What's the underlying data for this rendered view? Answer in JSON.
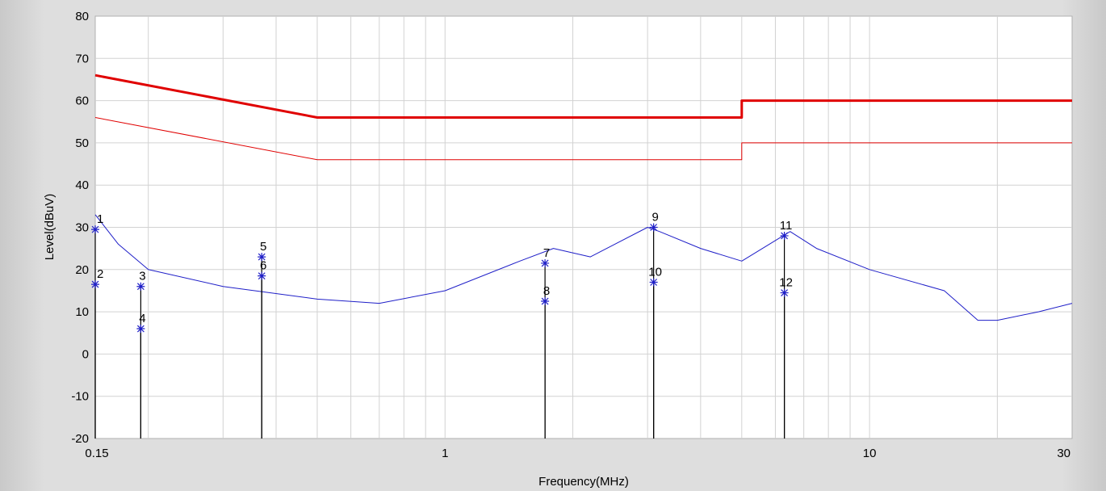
{
  "chart_data": {
    "type": "line",
    "title": "",
    "xlabel": "Frequency(MHz)",
    "ylabel": "Level(dBuV)",
    "x_scale": "log",
    "xlim": [
      0.15,
      30
    ],
    "ylim": [
      -20,
      80
    ],
    "grid": true,
    "x_tick_labels": [
      {
        "value": 0.15,
        "label": "0.15"
      },
      {
        "value": 1,
        "label": "1"
      },
      {
        "value": 10,
        "label": "10"
      },
      {
        "value": 30,
        "label": "30"
      }
    ],
    "y_ticks": [
      -20,
      -10,
      0,
      10,
      20,
      30,
      40,
      50,
      60,
      70,
      80
    ],
    "series": [
      {
        "color": "#e00000",
        "width": 3,
        "x": [
          0.15,
          0.5,
          0.5,
          5,
          5,
          30
        ],
        "y": [
          66,
          56,
          56,
          56,
          60,
          60
        ]
      },
      {
        "color": "#e00000",
        "width": 1,
        "x": [
          0.15,
          0.5,
          0.5,
          5,
          5,
          30
        ],
        "y": [
          56,
          46,
          46,
          46,
          50,
          50
        ]
      },
      {
        "color": "#1f1fc8",
        "width": 1,
        "x": [
          0.15,
          0.17,
          0.2,
          0.3,
          0.5,
          0.7,
          1.0,
          1.5,
          1.8,
          2.2,
          3.0,
          3.2,
          4.0,
          5.0,
          6.5,
          7.5,
          10,
          15,
          18,
          20,
          25,
          30
        ],
        "y": [
          33,
          26,
          20,
          16,
          13,
          12,
          15,
          22,
          25,
          23,
          30,
          29,
          25,
          22,
          29,
          25,
          20,
          15,
          8,
          8,
          10,
          12
        ]
      }
    ],
    "markers": [
      {
        "id": "1",
        "x": 0.15,
        "y": 29.5
      },
      {
        "id": "2",
        "x": 0.15,
        "y": 16.5
      },
      {
        "id": "3",
        "x": 0.192,
        "y": 16
      },
      {
        "id": "4",
        "x": 0.192,
        "y": 6
      },
      {
        "id": "5",
        "x": 0.37,
        "y": 23
      },
      {
        "id": "6",
        "x": 0.37,
        "y": 18.5
      },
      {
        "id": "7",
        "x": 1.72,
        "y": 21.5
      },
      {
        "id": "8",
        "x": 1.72,
        "y": 12.5
      },
      {
        "id": "9",
        "x": 3.1,
        "y": 30
      },
      {
        "id": "10",
        "x": 3.1,
        "y": 17
      },
      {
        "id": "11",
        "x": 6.3,
        "y": 28
      },
      {
        "id": "12",
        "x": 6.3,
        "y": 14.5
      }
    ]
  }
}
